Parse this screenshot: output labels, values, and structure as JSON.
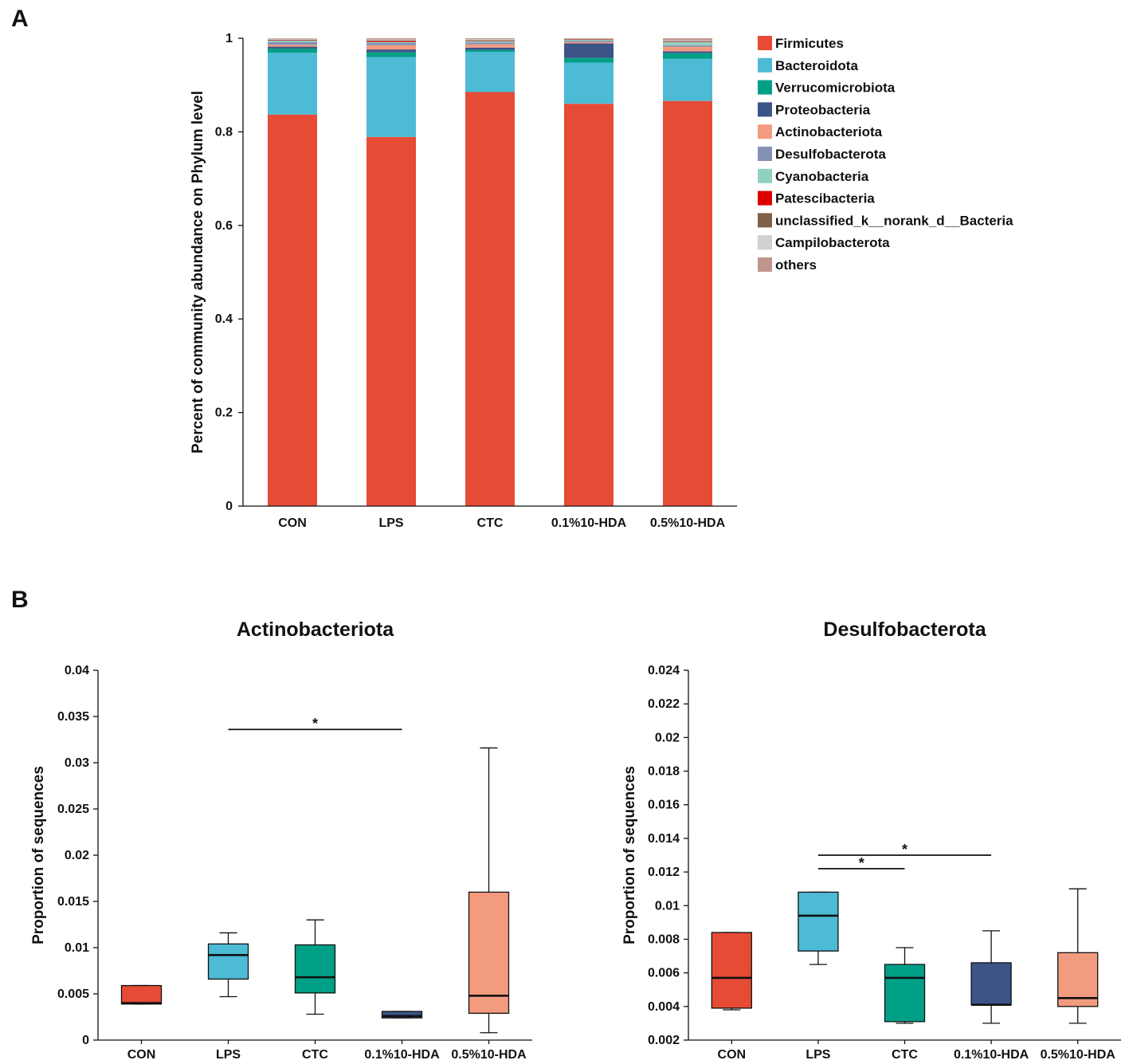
{
  "panels": {
    "a_label": "A",
    "b_label": "B"
  },
  "chart_data": [
    {
      "type": "bar",
      "stacked": true,
      "title": "",
      "ylabel": "Percent of community abundance on Phylum level",
      "xlabel": "",
      "ylim": [
        0,
        1
      ],
      "yticks": [
        0,
        0.2,
        0.4,
        0.6,
        0.8,
        1
      ],
      "ytick_labels": [
        "0",
        "0.2",
        "0.4",
        "0.6",
        "0.8",
        "1"
      ],
      "categories": [
        "CON",
        "LPS",
        "CTC",
        "0.1%10-HDA",
        "0.5%10-HDA"
      ],
      "legend_position": "right",
      "series": [
        {
          "name": "Firmicutes",
          "color": "#E64B35",
          "values": [
            0.837,
            0.789,
            0.885,
            0.86,
            0.866
          ]
        },
        {
          "name": "Bacteroidota",
          "color": "#4DBBD5",
          "values": [
            0.132,
            0.171,
            0.086,
            0.088,
            0.09
          ]
        },
        {
          "name": "Verrucomicrobiota",
          "color": "#00A087",
          "values": [
            0.009,
            0.01,
            0.004,
            0.01,
            0.012
          ]
        },
        {
          "name": "Proteobacteria",
          "color": "#3C5488",
          "values": [
            0.004,
            0.006,
            0.005,
            0.031,
            0.004
          ]
        },
        {
          "name": "Actinobacteriota",
          "color": "#F39B7F",
          "values": [
            0.004,
            0.009,
            0.007,
            0.003,
            0.01
          ]
        },
        {
          "name": "Desulfobacterota",
          "color": "#8491B4",
          "values": [
            0.006,
            0.005,
            0.004,
            0.003,
            0.003
          ]
        },
        {
          "name": "Cyanobacteria",
          "color": "#91D1C2",
          "values": [
            0.003,
            0.002,
            0.003,
            0.002,
            0.007
          ]
        },
        {
          "name": "Patescibacteria",
          "color": "#DC0000",
          "values": [
            0.001,
            0.002,
            0.001,
            0.001,
            0.001
          ]
        },
        {
          "name": "unclassified_k__norank_d__Bacteria",
          "color": "#7E6148",
          "values": [
            0.001,
            0.001,
            0.001,
            0.001,
            0.001
          ]
        },
        {
          "name": "Campilobacterota",
          "color": "#D0D0D0",
          "values": [
            0.002,
            0.002,
            0.002,
            0.001,
            0.002
          ]
        },
        {
          "name": "others",
          "color": "#C1958E",
          "values": [
            0.001,
            0.003,
            0.002,
            0.0,
            0.004
          ]
        }
      ]
    },
    {
      "type": "box",
      "title": "Actinobacteriota",
      "ylabel": "Proportion of sequences",
      "xlabel": "",
      "ylim": [
        0,
        0.04
      ],
      "yticks": [
        0,
        0.005,
        0.01,
        0.015,
        0.02,
        0.025,
        0.03,
        0.035,
        0.04
      ],
      "ytick_labels": [
        "0",
        "0.005",
        "0.01",
        "0.015",
        "0.02",
        "0.025",
        "0.03",
        "0.035",
        "0.04"
      ],
      "categories": [
        "CON",
        "LPS",
        "CTC",
        "0.1%10-HDA",
        "0.5%10-HDA"
      ],
      "boxes": [
        {
          "group": "CON",
          "color": "#E64B35",
          "min": 0.0039,
          "q1": 0.0039,
          "median": 0.004,
          "q3": 0.0059,
          "max": 0.0059
        },
        {
          "group": "LPS",
          "color": "#4DBBD5",
          "min": 0.0047,
          "q1": 0.0066,
          "median": 0.0092,
          "q3": 0.0104,
          "max": 0.0116
        },
        {
          "group": "CTC",
          "color": "#00A087",
          "min": 0.0028,
          "q1": 0.0051,
          "median": 0.0068,
          "q3": 0.0103,
          "max": 0.013
        },
        {
          "group": "0.1%10-HDA",
          "color": "#3C5488",
          "min": 0.0024,
          "q1": 0.0024,
          "median": 0.0026,
          "q3": 0.0031,
          "max": 0.0031
        },
        {
          "group": "0.5%10-HDA",
          "color": "#F39B7F",
          "min": 0.0008,
          "q1": 0.0029,
          "median": 0.0048,
          "q3": 0.016,
          "max": 0.0316
        }
      ],
      "significance": [
        {
          "from": "LPS",
          "to": "0.1%10-HDA",
          "y": 0.0336,
          "label": "*"
        }
      ]
    },
    {
      "type": "box",
      "title": "Desulfobacterota",
      "ylabel": "Proportion of sequences",
      "xlabel": "",
      "ylim": [
        0.002,
        0.024
      ],
      "yticks": [
        0.002,
        0.004,
        0.006,
        0.008,
        0.01,
        0.012,
        0.014,
        0.016,
        0.018,
        0.02,
        0.022,
        0.024
      ],
      "ytick_labels": [
        "0.002",
        "0.004",
        "0.006",
        "0.008",
        "0.01",
        "0.012",
        "0.014",
        "0.016",
        "0.018",
        "0.02",
        "0.022",
        "0.024"
      ],
      "categories": [
        "CON",
        "LPS",
        "CTC",
        "0.1%10-HDA",
        "0.5%10-HDA"
      ],
      "boxes": [
        {
          "group": "CON",
          "color": "#E64B35",
          "min": 0.0038,
          "q1": 0.0039,
          "median": 0.0057,
          "q3": 0.0084,
          "max": 0.0084
        },
        {
          "group": "LPS",
          "color": "#4DBBD5",
          "min": 0.0065,
          "q1": 0.0073,
          "median": 0.0094,
          "q3": 0.0108,
          "max": 0.0108
        },
        {
          "group": "CTC",
          "color": "#00A087",
          "min": 0.003,
          "q1": 0.0031,
          "median": 0.0057,
          "q3": 0.0065,
          "max": 0.0075
        },
        {
          "group": "0.1%10-HDA",
          "color": "#3C5488",
          "min": 0.003,
          "q1": 0.0041,
          "median": 0.0041,
          "q3": 0.0066,
          "max": 0.0085
        },
        {
          "group": "0.5%10-HDA",
          "color": "#F39B7F",
          "min": 0.003,
          "q1": 0.004,
          "median": 0.0045,
          "q3": 0.0072,
          "max": 0.011
        }
      ],
      "significance": [
        {
          "from": "LPS",
          "to": "CTC",
          "y": 0.0122,
          "label": "*"
        },
        {
          "from": "LPS",
          "to": "0.1%10-HDA",
          "y": 0.013,
          "label": "*"
        }
      ]
    }
  ]
}
